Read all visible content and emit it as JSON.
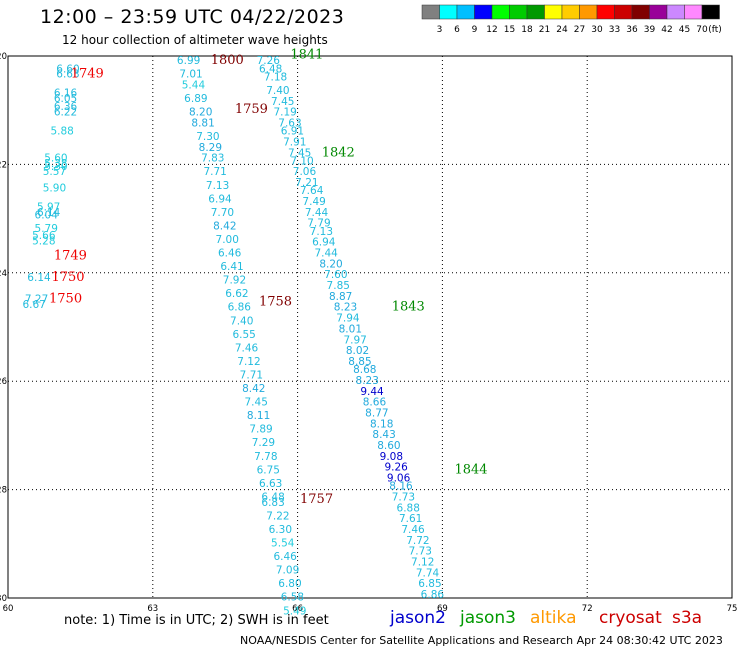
{
  "header": {
    "title": "12:00 – 23:59 UTC 04/22/2023",
    "subtitle": "12 hour collection of altimeter wave heights"
  },
  "color_scale": {
    "colors": [
      "#808080",
      "#00ffff",
      "#00bfff",
      "#0000ff",
      "#00ff00",
      "#00cc00",
      "#009900",
      "#ffff00",
      "#ffcc00",
      "#ff9900",
      "#ff0000",
      "#cc0000",
      "#800000",
      "#990099",
      "#cc88ff",
      "#ff88ff",
      "#000000"
    ],
    "labels": [
      "3",
      "6",
      "9",
      "12",
      "15",
      "18",
      "21",
      "24",
      "27",
      "30",
      "33",
      "36",
      "39",
      "42",
      "45",
      "70"
    ],
    "unit": "(ft)"
  },
  "map": {
    "lon_range": [
      60,
      75
    ],
    "lat_range": [
      -20,
      -30
    ],
    "x_ticks": [
      "60",
      "63",
      "66",
      "69",
      "72",
      "75"
    ],
    "y_ticks": [
      "-20",
      "-22",
      "-24",
      "-26",
      "-28",
      "-30"
    ],
    "grid": "dotted"
  },
  "tracks": [
    {
      "name": "track-1749-1750",
      "points": [
        {
          "v": "6.60",
          "lon": 61.0,
          "lat": -20.3,
          "c": "#22bbdd"
        },
        {
          "v": "6.63",
          "lon": 61.0,
          "lat": -20.4,
          "c": "#22bbdd"
        },
        {
          "v": "6.16",
          "lon": 60.95,
          "lat": -20.75,
          "c": "#22bbdd"
        },
        {
          "v": "6.05",
          "lon": 60.95,
          "lat": -20.85,
          "c": "#22bbdd"
        },
        {
          "v": "6.36",
          "lon": 60.95,
          "lat": -21.0,
          "c": "#22bbdd"
        },
        {
          "v": "6.22",
          "lon": 60.95,
          "lat": -21.1,
          "c": "#22bbdd"
        },
        {
          "v": "5.88",
          "lon": 60.88,
          "lat": -21.45,
          "c": "#22ccdd"
        },
        {
          "v": "5.60",
          "lon": 60.75,
          "lat": -21.95,
          "c": "#22ccdd"
        },
        {
          "v": "5.38",
          "lon": 60.75,
          "lat": -22.05,
          "c": "#22ccdd"
        },
        {
          "v": "5.30",
          "lon": 60.75,
          "lat": -22.1,
          "c": "#22ccdd"
        },
        {
          "v": "5.57",
          "lon": 60.72,
          "lat": -22.2,
          "c": "#22ccdd"
        },
        {
          "v": "5.90",
          "lon": 60.72,
          "lat": -22.5,
          "c": "#22ccdd"
        },
        {
          "v": "5.97",
          "lon": 60.6,
          "lat": -22.85,
          "c": "#22ccdd"
        },
        {
          "v": "6.14",
          "lon": 60.6,
          "lat": -22.95,
          "c": "#22bbdd"
        },
        {
          "v": "6.04",
          "lon": 60.55,
          "lat": -23.0,
          "c": "#22bbdd"
        },
        {
          "v": "5.79",
          "lon": 60.55,
          "lat": -23.25,
          "c": "#22ccdd"
        },
        {
          "v": "5.66",
          "lon": 60.5,
          "lat": -23.38,
          "c": "#22ccdd"
        },
        {
          "v": "5.28",
          "lon": 60.5,
          "lat": -23.48,
          "c": "#22ccdd"
        },
        {
          "v": "6.14",
          "lon": 60.4,
          "lat": -24.15,
          "c": "#22bbdd"
        },
        {
          "v": "7.27",
          "lon": 60.35,
          "lat": -24.55,
          "c": "#22bbdd"
        },
        {
          "v": "6.67",
          "lon": 60.3,
          "lat": -24.65,
          "c": "#22bbdd"
        }
      ]
    },
    {
      "name": "track-1759-1800",
      "points": [
        {
          "v": "6.99",
          "lon": 63.5,
          "lat": -20.15,
          "c": "#22bbdd"
        },
        {
          "v": "7.01",
          "lon": 63.55,
          "lat": -20.4,
          "c": "#22bbdd"
        },
        {
          "v": "5.44",
          "lon": 63.6,
          "lat": -20.6,
          "c": "#22ccdd"
        },
        {
          "v": "6.89",
          "lon": 63.65,
          "lat": -20.85,
          "c": "#22bbdd"
        },
        {
          "v": "8.20",
          "lon": 63.75,
          "lat": -21.1,
          "c": "#22aadd"
        },
        {
          "v": "8.81",
          "lon": 63.8,
          "lat": -21.3,
          "c": "#22aadd"
        },
        {
          "v": "7.30",
          "lon": 63.9,
          "lat": -21.55,
          "c": "#22bbdd"
        },
        {
          "v": "8.29",
          "lon": 63.95,
          "lat": -21.75,
          "c": "#22aadd"
        },
        {
          "v": "7.83",
          "lon": 64.0,
          "lat": -21.95,
          "c": "#22bbdd"
        },
        {
          "v": "7.71",
          "lon": 64.05,
          "lat": -22.2,
          "c": "#22bbdd"
        },
        {
          "v": "7.13",
          "lon": 64.1,
          "lat": -22.45,
          "c": "#22bbdd"
        },
        {
          "v": "6.94",
          "lon": 64.15,
          "lat": -22.7,
          "c": "#22bbdd"
        },
        {
          "v": "7.70",
          "lon": 64.2,
          "lat": -22.95,
          "c": "#22bbdd"
        },
        {
          "v": "8.42",
          "lon": 64.25,
          "lat": -23.2,
          "c": "#22aadd"
        },
        {
          "v": "7.00",
          "lon": 64.3,
          "lat": -23.45,
          "c": "#22bbdd"
        },
        {
          "v": "6.46",
          "lon": 64.35,
          "lat": -23.7,
          "c": "#22bbdd"
        },
        {
          "v": "6.41",
          "lon": 64.4,
          "lat": -23.95,
          "c": "#22bbdd"
        },
        {
          "v": "7.92",
          "lon": 64.45,
          "lat": -24.2,
          "c": "#22bbdd"
        },
        {
          "v": "6.62",
          "lon": 64.5,
          "lat": -24.45,
          "c": "#22bbdd"
        },
        {
          "v": "6.86",
          "lon": 64.55,
          "lat": -24.7,
          "c": "#22bbdd"
        },
        {
          "v": "7.40",
          "lon": 64.6,
          "lat": -24.95,
          "c": "#22bbdd"
        },
        {
          "v": "6.55",
          "lon": 64.65,
          "lat": -25.2,
          "c": "#22bbdd"
        },
        {
          "v": "7.46",
          "lon": 64.7,
          "lat": -25.45,
          "c": "#22bbdd"
        },
        {
          "v": "7.12",
          "lon": 64.75,
          "lat": -25.7,
          "c": "#22bbdd"
        },
        {
          "v": "7.71",
          "lon": 64.8,
          "lat": -25.95,
          "c": "#22bbdd"
        },
        {
          "v": "8.42",
          "lon": 64.85,
          "lat": -26.2,
          "c": "#22aadd"
        },
        {
          "v": "7.45",
          "lon": 64.9,
          "lat": -26.45,
          "c": "#22bbdd"
        },
        {
          "v": "8.11",
          "lon": 64.95,
          "lat": -26.7,
          "c": "#22aadd"
        },
        {
          "v": "7.89",
          "lon": 65.0,
          "lat": -26.95,
          "c": "#22bbdd"
        },
        {
          "v": "7.29",
          "lon": 65.05,
          "lat": -27.2,
          "c": "#22bbdd"
        },
        {
          "v": "7.78",
          "lon": 65.1,
          "lat": -27.45,
          "c": "#22bbdd"
        },
        {
          "v": "6.75",
          "lon": 65.15,
          "lat": -27.7,
          "c": "#22bbdd"
        },
        {
          "v": "6.63",
          "lon": 65.2,
          "lat": -27.95,
          "c": "#22bbdd"
        },
        {
          "v": "6.48",
          "lon": 65.25,
          "lat": -28.2,
          "c": "#22bbdd"
        },
        {
          "v": "6.83",
          "lon": 65.25,
          "lat": -28.3,
          "c": "#22bbdd"
        },
        {
          "v": "7.22",
          "lon": 65.35,
          "lat": -28.55,
          "c": "#22bbdd"
        },
        {
          "v": "6.30",
          "lon": 65.4,
          "lat": -28.8,
          "c": "#22bbdd"
        },
        {
          "v": "5.54",
          "lon": 65.45,
          "lat": -29.05,
          "c": "#22ccdd"
        },
        {
          "v": "6.46",
          "lon": 65.5,
          "lat": -29.3,
          "c": "#22bbdd"
        },
        {
          "v": "7.09",
          "lon": 65.55,
          "lat": -29.55,
          "c": "#22bbdd"
        },
        {
          "v": "6.80",
          "lon": 65.6,
          "lat": -29.8,
          "c": "#22bbdd"
        },
        {
          "v": "6.58",
          "lon": 65.65,
          "lat": -30.05,
          "c": "#22bbdd"
        },
        {
          "v": "5.49",
          "lon": 65.7,
          "lat": -30.3,
          "c": "#22ccdd"
        }
      ]
    },
    {
      "name": "track-1841-1844",
      "points": [
        {
          "v": "7.26",
          "lon": 65.15,
          "lat": -20.15,
          "c": "#22bbdd"
        },
        {
          "v": "6.48",
          "lon": 65.2,
          "lat": -20.3,
          "c": "#22bbdd"
        },
        {
          "v": "7.18",
          "lon": 65.3,
          "lat": -20.45,
          "c": "#22bbdd"
        },
        {
          "v": "7.40",
          "lon": 65.35,
          "lat": -20.7,
          "c": "#22bbdd"
        },
        {
          "v": "7.45",
          "lon": 65.45,
          "lat": -20.9,
          "c": "#22bbdd"
        },
        {
          "v": "7.19",
          "lon": 65.5,
          "lat": -21.1,
          "c": "#22bbdd"
        },
        {
          "v": "7.63",
          "lon": 65.6,
          "lat": -21.3,
          "c": "#22bbdd"
        },
        {
          "v": "6.91",
          "lon": 65.65,
          "lat": -21.45,
          "c": "#22bbdd"
        },
        {
          "v": "7.91",
          "lon": 65.7,
          "lat": -21.65,
          "c": "#22bbdd"
        },
        {
          "v": "7.45",
          "lon": 65.8,
          "lat": -21.85,
          "c": "#22bbdd"
        },
        {
          "v": "7.10",
          "lon": 65.85,
          "lat": -22.0,
          "c": "#22bbdd"
        },
        {
          "v": "7.06",
          "lon": 65.9,
          "lat": -22.2,
          "c": "#22bbdd"
        },
        {
          "v": "7.21",
          "lon": 65.95,
          "lat": -22.4,
          "c": "#22bbdd"
        },
        {
          "v": "7.64",
          "lon": 66.05,
          "lat": -22.55,
          "c": "#22bbdd"
        },
        {
          "v": "7.49",
          "lon": 66.1,
          "lat": -22.75,
          "c": "#22bbdd"
        },
        {
          "v": "7.44",
          "lon": 66.15,
          "lat": -22.95,
          "c": "#22bbdd"
        },
        {
          "v": "7.79",
          "lon": 66.2,
          "lat": -23.15,
          "c": "#22bbdd"
        },
        {
          "v": "7.13",
          "lon": 66.25,
          "lat": -23.3,
          "c": "#22bbdd"
        },
        {
          "v": "6.94",
          "lon": 66.3,
          "lat": -23.5,
          "c": "#22bbdd"
        },
        {
          "v": "7.44",
          "lon": 66.35,
          "lat": -23.7,
          "c": "#22bbdd"
        },
        {
          "v": "8.20",
          "lon": 66.45,
          "lat": -23.9,
          "c": "#22aadd"
        },
        {
          "v": "7.60",
          "lon": 66.55,
          "lat": -24.1,
          "c": "#22bbdd"
        },
        {
          "v": "7.85",
          "lon": 66.6,
          "lat": -24.3,
          "c": "#22bbdd"
        },
        {
          "v": "8.87",
          "lon": 66.65,
          "lat": -24.5,
          "c": "#22aadd"
        },
        {
          "v": "8.23",
          "lon": 66.75,
          "lat": -24.7,
          "c": "#22aadd"
        },
        {
          "v": "7.94",
          "lon": 66.8,
          "lat": -24.9,
          "c": "#22bbdd"
        },
        {
          "v": "8.01",
          "lon": 66.85,
          "lat": -25.1,
          "c": "#22aadd"
        },
        {
          "v": "7.97",
          "lon": 66.95,
          "lat": -25.3,
          "c": "#22bbdd"
        },
        {
          "v": "8.02",
          "lon": 67.0,
          "lat": -25.5,
          "c": "#22aadd"
        },
        {
          "v": "8.85",
          "lon": 67.05,
          "lat": -25.7,
          "c": "#22aadd"
        },
        {
          "v": "8.68",
          "lon": 67.15,
          "lat": -25.85,
          "c": "#22aadd"
        },
        {
          "v": "8.23",
          "lon": 67.2,
          "lat": -26.05,
          "c": "#22aadd"
        },
        {
          "v": "9.44",
          "lon": 67.3,
          "lat": -26.25,
          "c": "#0000cc"
        },
        {
          "v": "8.66",
          "lon": 67.35,
          "lat": -26.45,
          "c": "#22aadd"
        },
        {
          "v": "8.77",
          "lon": 67.4,
          "lat": -26.65,
          "c": "#22aadd"
        },
        {
          "v": "8.18",
          "lon": 67.5,
          "lat": -26.85,
          "c": "#22aadd"
        },
        {
          "v": "8.43",
          "lon": 67.55,
          "lat": -27.05,
          "c": "#22aadd"
        },
        {
          "v": "8.60",
          "lon": 67.65,
          "lat": -27.25,
          "c": "#22aadd"
        },
        {
          "v": "9.08",
          "lon": 67.7,
          "lat": -27.45,
          "c": "#0000cc"
        },
        {
          "v": "9.26",
          "lon": 67.8,
          "lat": -27.65,
          "c": "#0000cc"
        },
        {
          "v": "9.06",
          "lon": 67.85,
          "lat": -27.85,
          "c": "#0000cc"
        },
        {
          "v": "8.16",
          "lon": 67.9,
          "lat": -28.0,
          "c": "#22aadd"
        },
        {
          "v": "7.73",
          "lon": 67.95,
          "lat": -28.2,
          "c": "#22bbdd"
        },
        {
          "v": "6.88",
          "lon": 68.05,
          "lat": -28.4,
          "c": "#22bbdd"
        },
        {
          "v": "7.61",
          "lon": 68.1,
          "lat": -28.6,
          "c": "#22bbdd"
        },
        {
          "v": "7.46",
          "lon": 68.15,
          "lat": -28.8,
          "c": "#22bbdd"
        },
        {
          "v": "7.72",
          "lon": 68.25,
          "lat": -29.0,
          "c": "#22bbdd"
        },
        {
          "v": "7.73",
          "lon": 68.3,
          "lat": -29.2,
          "c": "#22bbdd"
        },
        {
          "v": "7.12",
          "lon": 68.35,
          "lat": -29.4,
          "c": "#22bbdd"
        },
        {
          "v": "7.74",
          "lon": 68.45,
          "lat": -29.6,
          "c": "#22bbdd"
        },
        {
          "v": "6.85",
          "lon": 68.5,
          "lat": -29.8,
          "c": "#22bbdd"
        },
        {
          "v": "6.86",
          "lon": 68.55,
          "lat": -30.0,
          "c": "#22bbdd"
        }
      ]
    }
  ],
  "time_labels": [
    {
      "t": "1749",
      "lon": 61.3,
      "lat": -20.4,
      "c": "#ee0000"
    },
    {
      "t": "1800",
      "lon": 64.2,
      "lat": -20.15,
      "c": "#800000"
    },
    {
      "t": "1841",
      "lon": 65.85,
      "lat": -20.05,
      "c": "#008800"
    },
    {
      "t": "1759",
      "lon": 64.7,
      "lat": -21.05,
      "c": "#800000"
    },
    {
      "t": "1842",
      "lon": 66.5,
      "lat": -21.85,
      "c": "#008800"
    },
    {
      "t": "1749",
      "lon": 60.95,
      "lat": -23.75,
      "c": "#ee0000"
    },
    {
      "t": "1750",
      "lon": 60.9,
      "lat": -24.15,
      "c": "#ee0000"
    },
    {
      "t": "1750",
      "lon": 60.85,
      "lat": -24.55,
      "c": "#ee0000"
    },
    {
      "t": "1758",
      "lon": 65.2,
      "lat": -24.6,
      "c": "#800000"
    },
    {
      "t": "1843",
      "lon": 67.95,
      "lat": -24.7,
      "c": "#008800"
    },
    {
      "t": "1844",
      "lon": 69.25,
      "lat": -27.7,
      "c": "#008800"
    },
    {
      "t": "1757",
      "lon": 66.05,
      "lat": -28.25,
      "c": "#800000"
    }
  ],
  "footer": {
    "note": "note:  1) Time is in UTC;  2) SWH is in feet",
    "satellites": [
      {
        "name": "jason2",
        "color": "#0000cc"
      },
      {
        "name": "jason3",
        "color": "#009900"
      },
      {
        "name": "altika",
        "color": "#ff9900"
      },
      {
        "name": "cryosat",
        "color": "#cc0000"
      },
      {
        "name": "s3a",
        "color": "#cc0000"
      }
    ],
    "credit": "NOAA/NESDIS Center for Satellite Applications and Research    Apr 24 08:30:42 UTC 2023"
  }
}
